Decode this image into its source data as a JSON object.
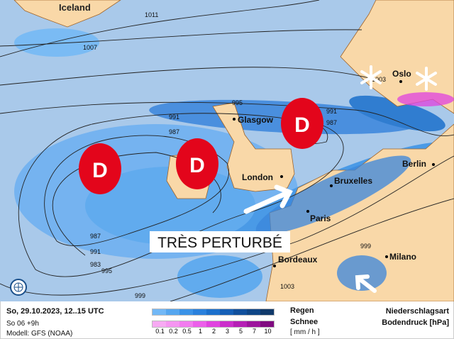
{
  "map": {
    "region_labels": {
      "iceland": "Iceland"
    },
    "cities": [
      "Glasgow",
      "London",
      "Bruxelles",
      "Paris",
      "Berlin",
      "Oslo",
      "Milano",
      "Bordeaux"
    ],
    "isobars": [
      "1011",
      "1007",
      "995",
      "991",
      "987",
      "983",
      "987",
      "991",
      "995",
      "999",
      "991",
      "987",
      "1003",
      "999",
      "1003"
    ],
    "low_symbol": "D",
    "headline": "TRÈS PERTURBÉ",
    "colors": {
      "ocean": "#a9c9ea",
      "land": "#f9d8a8",
      "low": "#e3051b",
      "borders": "#a0652a"
    }
  },
  "footer": {
    "datetime": "So, 29.10.2023, 12..15 UTC",
    "run": "So 06 +9h",
    "model": "Modell: GFS (NOAA)",
    "rain_label": "Regen",
    "snow_label": "Schnee",
    "unit": "[ mm / h ]",
    "ticks": [
      "0.1",
      "0.2",
      "0.5",
      "1",
      "2",
      "3",
      "5",
      "7",
      "10"
    ],
    "legend_title": "Niederschlagsart",
    "pressure_label": "Bodendruck [hPa]",
    "rain_colors": [
      "#72b8f6",
      "#55a6ef",
      "#3a92e6",
      "#2a80dc",
      "#1c70cc",
      "#155fb6",
      "#104f9c",
      "#0e4586",
      "#10396a"
    ],
    "snow_colors": [
      "#f7aaf3",
      "#f595f1",
      "#f27bef",
      "#ec5fea",
      "#e042df",
      "#cb2ecb",
      "#b51fb5",
      "#9c149c",
      "#800a80"
    ]
  }
}
